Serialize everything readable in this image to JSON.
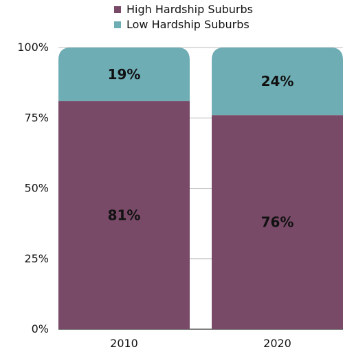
{
  "chart_data": {
    "type": "bar",
    "stacked": true,
    "orientation": "vertical",
    "categories": [
      "2010",
      "2020"
    ],
    "series": [
      {
        "name": "High Hardship Suburbs",
        "values": [
          81,
          76
        ],
        "labels": [
          "81%",
          "76%"
        ],
        "color": "#784a67"
      },
      {
        "name": "Low Hardship Suburbs",
        "values": [
          19,
          24
        ],
        "labels": [
          "19%",
          "24%"
        ],
        "color": "#6fadb5"
      }
    ],
    "title": "",
    "xlabel": "",
    "ylabel": "",
    "ylim": [
      0,
      100
    ],
    "yticks": [
      {
        "value": 0,
        "label": "0%"
      },
      {
        "value": 25,
        "label": "25%"
      },
      {
        "value": 50,
        "label": "50%"
      },
      {
        "value": 75,
        "label": "75%"
      },
      {
        "value": 100,
        "label": "100%"
      }
    ],
    "grid": true,
    "legend_position": "top"
  }
}
